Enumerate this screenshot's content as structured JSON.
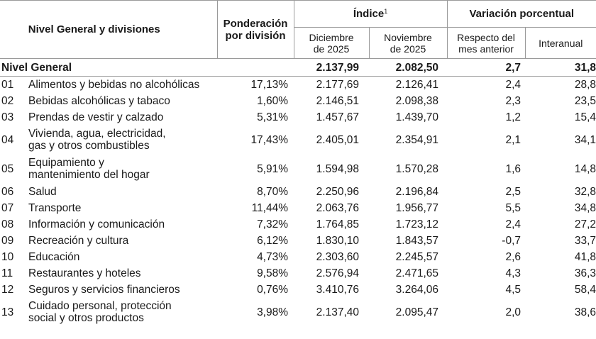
{
  "header": {
    "divisions": "Nivel General y divisiones",
    "weight_line1": "Ponderación",
    "weight_line2": "por división",
    "index": "Índice",
    "index_note": "1",
    "variation": "Variación porcentual",
    "dec_line1": "Diciembre",
    "dec_line2": "de 2025",
    "nov_line1": "Noviembre",
    "nov_line2": "de 2025",
    "prev_line1": "Respecto del",
    "prev_line2": "mes anterior",
    "yoy": "Interanual"
  },
  "general": {
    "label": "Nivel General",
    "dec": "2.137,99",
    "nov": "2.082,50",
    "var": "2,7",
    "yoy": "31,8"
  },
  "rows": [
    {
      "code": "01",
      "name1": "Alimentos y bebidas no alcohólicas",
      "name2": "",
      "pond": "17,13%",
      "dec": "2.177,69",
      "nov": "2.126,41",
      "var": "2,4",
      "yoy": "28,8"
    },
    {
      "code": "02",
      "name1": "Bebidas alcohólicas y tabaco",
      "name2": "",
      "pond": "1,60%",
      "dec": "2.146,51",
      "nov": "2.098,38",
      "var": "2,3",
      "yoy": "23,5"
    },
    {
      "code": "03",
      "name1": "Prendas de vestir y calzado",
      "name2": "",
      "pond": "5,31%",
      "dec": "1.457,67",
      "nov": "1.439,70",
      "var": "1,2",
      "yoy": "15,4"
    },
    {
      "code": "04",
      "name1": "Vivienda, agua, electricidad,",
      "name2": "gas y otros combustibles",
      "pond": "17,43%",
      "dec": "2.405,01",
      "nov": "2.354,91",
      "var": "2,1",
      "yoy": "34,1"
    },
    {
      "code": "05",
      "name1": "Equipamiento y",
      "name2": "mantenimiento del hogar",
      "pond": "5,91%",
      "dec": "1.594,98",
      "nov": "1.570,28",
      "var": "1,6",
      "yoy": "14,8"
    },
    {
      "code": "06",
      "name1": "Salud",
      "name2": "",
      "pond": "8,70%",
      "dec": "2.250,96",
      "nov": "2.196,84",
      "var": "2,5",
      "yoy": "32,8"
    },
    {
      "code": "07",
      "name1": "Transporte",
      "name2": "",
      "pond": "11,44%",
      "dec": "2.063,76",
      "nov": "1.956,77",
      "var": "5,5",
      "yoy": "34,8"
    },
    {
      "code": "08",
      "name1": "Información y comunicación",
      "name2": "",
      "pond": "7,32%",
      "dec": "1.764,85",
      "nov": "1.723,12",
      "var": "2,4",
      "yoy": "27,2"
    },
    {
      "code": "09",
      "name1": "Recreación y cultura",
      "name2": "",
      "pond": "6,12%",
      "dec": "1.830,10",
      "nov": "1.843,57",
      "var": "-0,7",
      "yoy": "33,7"
    },
    {
      "code": "10",
      "name1": "Educación",
      "name2": "",
      "pond": "4,73%",
      "dec": "2.303,60",
      "nov": "2.245,57",
      "var": "2,6",
      "yoy": "41,8"
    },
    {
      "code": "11",
      "name1": "Restaurantes y hoteles",
      "name2": "",
      "pond": "9,58%",
      "dec": "2.576,94",
      "nov": "2.471,65",
      "var": "4,3",
      "yoy": "36,3"
    },
    {
      "code": "12",
      "name1": "Seguros y servicios financieros",
      "name2": "",
      "pond": "0,76%",
      "dec": "3.410,76",
      "nov": "3.264,06",
      "var": "4,5",
      "yoy": "58,4"
    },
    {
      "code": "13",
      "name1": "Cuidado personal, protección",
      "name2": "social y otros productos",
      "pond": "3,98%",
      "dec": "2.137,40",
      "nov": "2.095,47",
      "var": "2,0",
      "yoy": "38,6"
    }
  ]
}
